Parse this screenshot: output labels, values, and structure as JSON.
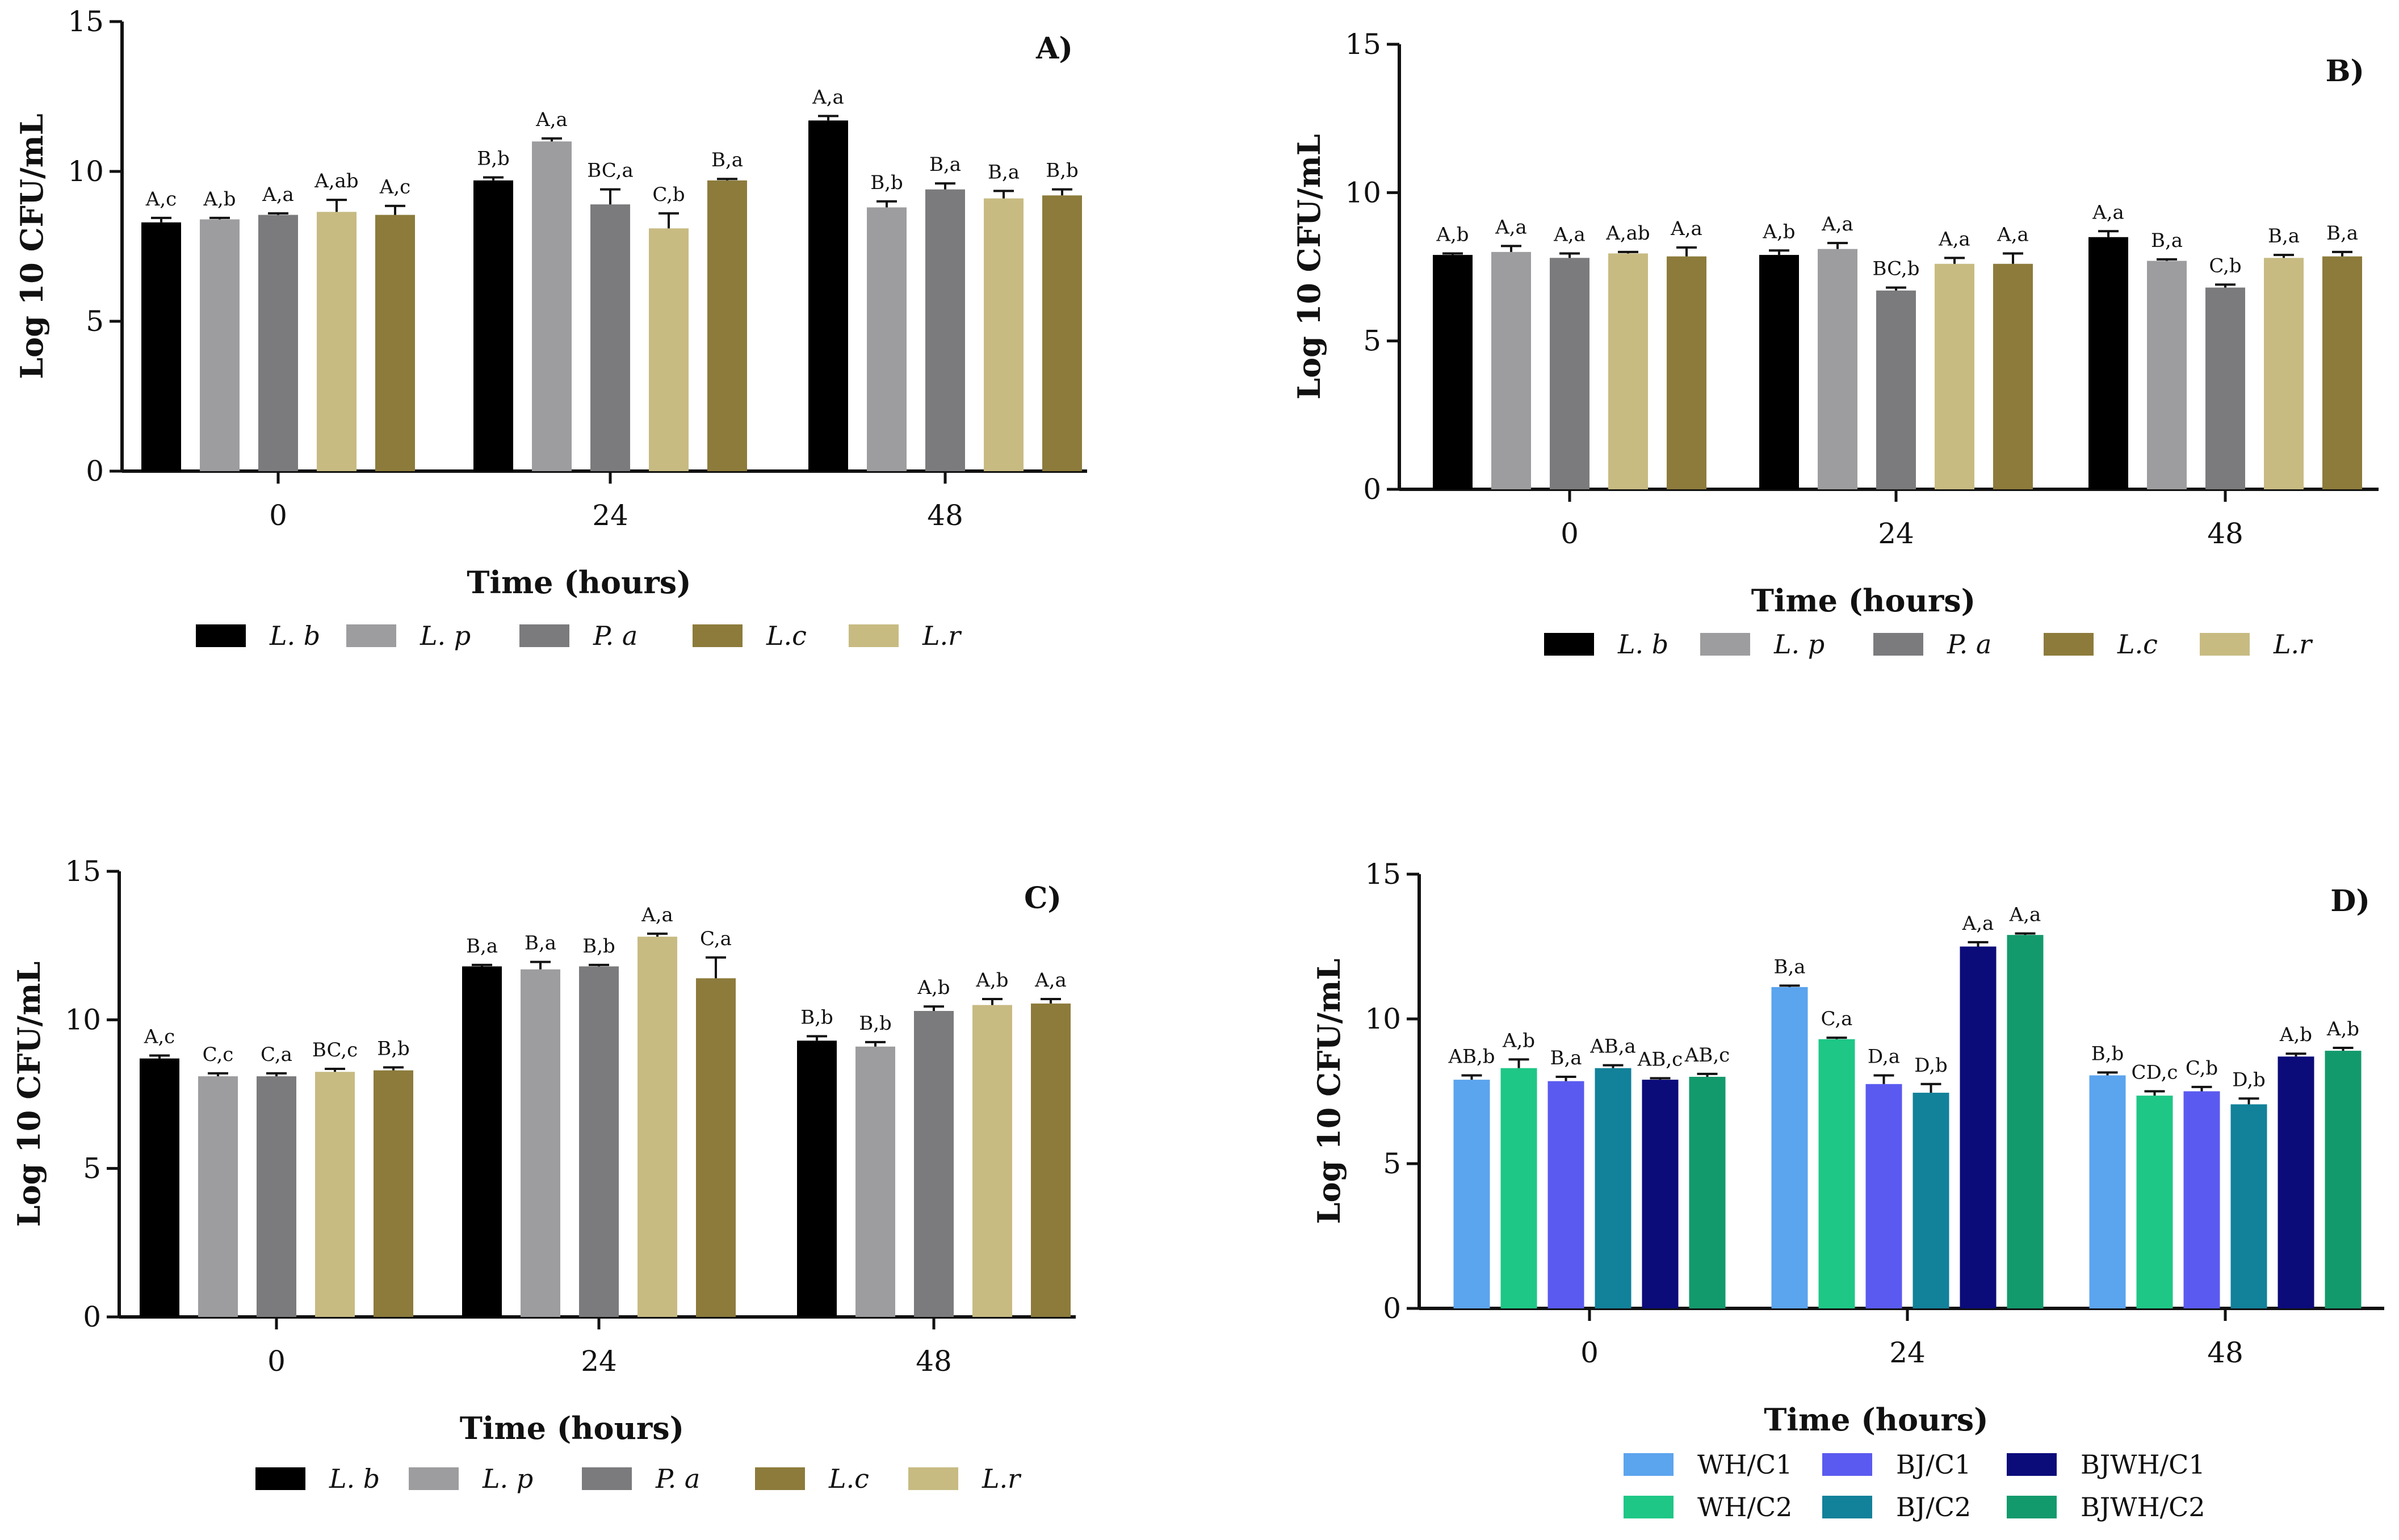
{
  "chart_data": [
    {
      "type": "bar",
      "panel_label": "A)",
      "xlabel": "Time (hours)",
      "ylabel": "Log 10 CFU/mL",
      "ylim": [
        0,
        15
      ],
      "yticks": [
        "0",
        "5",
        "10",
        "15"
      ],
      "categories": [
        "0",
        "24",
        "48"
      ],
      "series": [
        {
          "name": "L. b",
          "italic": true,
          "color": "#000000",
          "values": [
            8.3,
            9.7,
            11.7
          ],
          "errors": [
            0.15,
            0.1,
            0.15
          ],
          "labels": [
            "A,c",
            "B,b",
            "A,a"
          ]
        },
        {
          "name": "L. p",
          "italic": true,
          "color": "#9d9d9f",
          "values": [
            8.4,
            11.0,
            8.8
          ],
          "errors": [
            0.05,
            0.1,
            0.2
          ],
          "labels": [
            "A,b",
            "A,a",
            "B,b"
          ]
        },
        {
          "name": "P. a",
          "italic": true,
          "color": "#7b7b7d",
          "values": [
            8.55,
            8.9,
            9.4
          ],
          "errors": [
            0.05,
            0.5,
            0.2
          ],
          "labels": [
            "A,a",
            "BC,a",
            "B,a"
          ]
        },
        {
          "name": "L.c",
          "italic": true,
          "color": "#c7bb82",
          "legend_color": "#8c7b3b",
          "values": [
            8.65,
            8.1,
            9.1
          ],
          "errors": [
            0.4,
            0.5,
            0.25
          ],
          "labels": [
            "A,ab",
            "C,b",
            "B,a"
          ]
        },
        {
          "name": "L.r",
          "italic": true,
          "color": "#8c7b3b",
          "legend_color": "#c7bb82",
          "values": [
            8.55,
            9.7,
            9.2
          ],
          "errors": [
            0.3,
            0.05,
            0.2
          ],
          "labels": [
            "A,c",
            "B,a",
            "B,b"
          ]
        }
      ]
    },
    {
      "type": "bar",
      "panel_label": "B)",
      "xlabel": "Time (hours)",
      "ylabel": "Log 10 CFU/mL",
      "ylim": [
        0,
        15
      ],
      "yticks": [
        "0",
        "5",
        "10",
        "15"
      ],
      "categories": [
        "0",
        "24",
        "48"
      ],
      "series": [
        {
          "name": "L. b",
          "italic": true,
          "color": "#000000",
          "values": [
            7.9,
            7.9,
            8.5
          ],
          "errors": [
            0.05,
            0.15,
            0.2
          ],
          "labels": [
            "A,b",
            "A,b",
            "A,a"
          ]
        },
        {
          "name": "L. p",
          "italic": true,
          "color": "#9d9d9f",
          "values": [
            8.0,
            8.1,
            7.7
          ],
          "errors": [
            0.2,
            0.2,
            0.05
          ],
          "labels": [
            "A,a",
            "A,a",
            "B,a"
          ]
        },
        {
          "name": "P. a",
          "italic": true,
          "color": "#7b7b7d",
          "values": [
            7.8,
            6.7,
            6.8
          ],
          "errors": [
            0.15,
            0.1,
            0.1
          ],
          "labels": [
            "A,a",
            "BC,b",
            "C,b"
          ]
        },
        {
          "name": "L.c",
          "italic": true,
          "color": "#c7bb82",
          "legend_color": "#8c7b3b",
          "values": [
            7.95,
            7.6,
            7.8
          ],
          "errors": [
            0.05,
            0.2,
            0.1
          ],
          "labels": [
            "A,ab",
            "A,a",
            "B,a"
          ]
        },
        {
          "name": "L.r",
          "italic": true,
          "color": "#8c7b3b",
          "legend_color": "#c7bb82",
          "values": [
            7.85,
            7.6,
            7.85
          ],
          "errors": [
            0.3,
            0.35,
            0.15
          ],
          "labels": [
            "A,a",
            "A,a",
            "B,a"
          ]
        }
      ]
    },
    {
      "type": "bar",
      "panel_label": "C)",
      "xlabel": "Time (hours)",
      "ylabel": "Log 10 CFU/mL",
      "ylim": [
        0,
        15
      ],
      "yticks": [
        "0",
        "5",
        "10",
        "15"
      ],
      "categories": [
        "0",
        "24",
        "48"
      ],
      "series": [
        {
          "name": "L. b",
          "italic": true,
          "color": "#000000",
          "values": [
            8.7,
            11.8,
            9.3
          ],
          "errors": [
            0.1,
            0.05,
            0.15
          ],
          "labels": [
            "A,c",
            "B,a",
            "B,b"
          ]
        },
        {
          "name": "L. p",
          "italic": true,
          "color": "#9d9d9f",
          "values": [
            8.1,
            11.7,
            9.1
          ],
          "errors": [
            0.1,
            0.25,
            0.15
          ],
          "labels": [
            "C,c",
            "B,a",
            "B,b"
          ]
        },
        {
          "name": "P. a",
          "italic": true,
          "color": "#7b7b7d",
          "values": [
            8.1,
            11.8,
            10.3
          ],
          "errors": [
            0.1,
            0.05,
            0.15
          ],
          "labels": [
            "C,a",
            "B,b",
            "A,b"
          ]
        },
        {
          "name": "L.c",
          "italic": true,
          "color": "#c7bb82",
          "legend_color": "#8c7b3b",
          "values": [
            8.25,
            12.8,
            10.5
          ],
          "errors": [
            0.1,
            0.1,
            0.2
          ],
          "labels": [
            "BC,c",
            "A,a",
            "A,b"
          ]
        },
        {
          "name": "L.r",
          "italic": true,
          "color": "#8c7b3b",
          "legend_color": "#c7bb82",
          "values": [
            8.3,
            11.4,
            10.55
          ],
          "errors": [
            0.1,
            0.7,
            0.15
          ],
          "labels": [
            "B,b",
            "C,a",
            "A,a"
          ]
        }
      ]
    },
    {
      "type": "bar",
      "panel_label": "D)",
      "xlabel": "Time (hours)",
      "ylabel": "Log 10 CFU/mL",
      "ylim": [
        0,
        15
      ],
      "yticks": [
        "0",
        "5",
        "10",
        "15"
      ],
      "categories": [
        "0",
        "24",
        "48"
      ],
      "series": [
        {
          "name": "WH/C1",
          "italic": false,
          "color": "#5ba4ee",
          "values": [
            7.9,
            11.1,
            8.05
          ],
          "errors": [
            0.15,
            0.05,
            0.1
          ],
          "labels": [
            "AB,b",
            "B,a",
            "B,b"
          ]
        },
        {
          "name": "WH/C2",
          "italic": false,
          "color": "#1ec786",
          "values": [
            8.3,
            9.3,
            7.35
          ],
          "errors": [
            0.3,
            0.05,
            0.15
          ],
          "labels": [
            "A,b",
            "C,a",
            "CD,c"
          ]
        },
        {
          "name": "BJ/C1",
          "italic": false,
          "color": "#5a5af0",
          "values": [
            7.85,
            7.75,
            7.5
          ],
          "errors": [
            0.15,
            0.3,
            0.15
          ],
          "labels": [
            "B,a",
            "D,a",
            "C,b"
          ]
        },
        {
          "name": "BJ/C2",
          "italic": false,
          "color": "#12819a",
          "values": [
            8.3,
            7.45,
            7.05
          ],
          "errors": [
            0.1,
            0.3,
            0.2
          ],
          "labels": [
            "AB,a",
            "D,b",
            "D,b"
          ]
        },
        {
          "name": "BJWH/C1",
          "italic": false,
          "color": "#0b0b7a",
          "values": [
            7.9,
            12.5,
            8.7
          ],
          "errors": [
            0.05,
            0.15,
            0.1
          ],
          "labels": [
            "AB,c",
            "A,a",
            "A,b"
          ]
        },
        {
          "name": "BJWH/C2",
          "italic": false,
          "color": "#139a6c",
          "values": [
            8.0,
            12.9,
            8.9
          ],
          "errors": [
            0.1,
            0.05,
            0.1
          ],
          "labels": [
            "AB,c",
            "A,a",
            "A,b"
          ]
        }
      ]
    }
  ]
}
